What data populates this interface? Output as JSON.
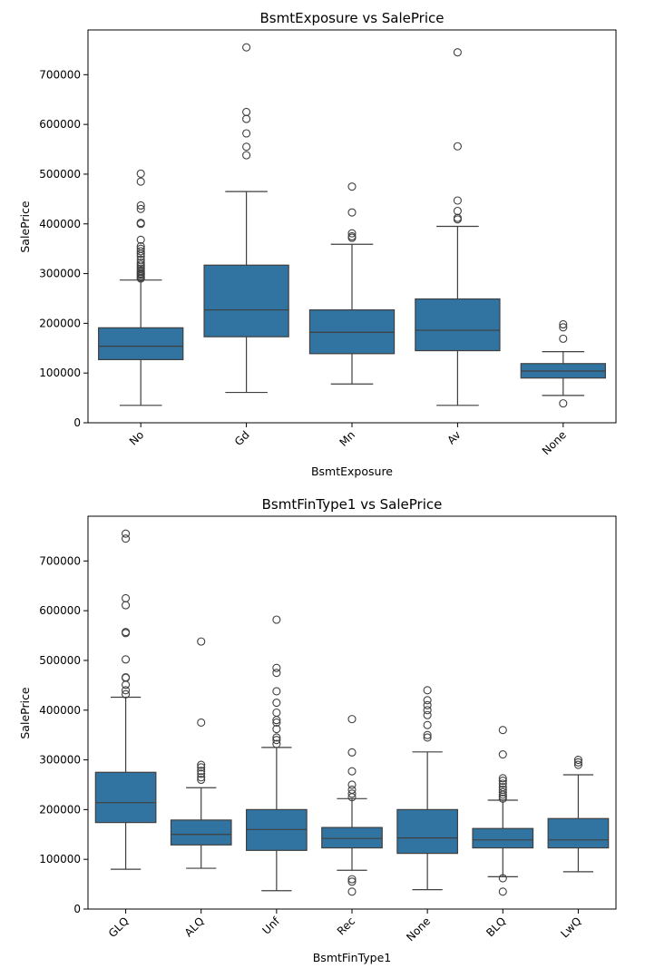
{
  "chart_data": [
    {
      "type": "box",
      "title": "BsmtExposure vs SalePrice",
      "xlabel": "BsmtExposure",
      "ylabel": "SalePrice",
      "ylim": [
        0,
        790000
      ],
      "yticks": [
        0,
        100000,
        200000,
        300000,
        400000,
        500000,
        600000,
        700000
      ],
      "ytick_labels": [
        "0",
        "100000",
        "200000",
        "300000",
        "400000",
        "500000",
        "600000",
        "700000"
      ],
      "color": "#3274a1",
      "categories": [
        "No",
        "Gd",
        "Mn",
        "Av",
        "None"
      ],
      "boxes": [
        {
          "min": 35000,
          "q1": 127000,
          "median": 154000,
          "q3": 191000,
          "max": 287000,
          "outliers": [
            290000,
            292000,
            295000,
            298000,
            300000,
            303000,
            306000,
            310000,
            314000,
            318000,
            322000,
            328000,
            335000,
            340000,
            345000,
            350000,
            355000,
            368000,
            400000,
            402000,
            430000,
            437000,
            485000,
            501000
          ]
        },
        {
          "min": 61000,
          "q1": 173000,
          "median": 227000,
          "q3": 317000,
          "max": 465000,
          "outliers": [
            538000,
            555000,
            582000,
            611000,
            625000,
            755000
          ]
        },
        {
          "min": 78000,
          "q1": 139000,
          "median": 182000,
          "q3": 227000,
          "max": 359000,
          "outliers": [
            372000,
            375000,
            381000,
            423000,
            475000
          ]
        },
        {
          "min": 35000,
          "q1": 145000,
          "median": 186000,
          "q3": 249000,
          "max": 395000,
          "outliers": [
            409000,
            412000,
            426000,
            447000,
            556000,
            745000
          ]
        },
        {
          "min": 55000,
          "q1": 90000,
          "median": 104000,
          "q3": 119000,
          "max": 143000,
          "outliers": [
            39000,
            169000,
            192000,
            198000
          ]
        }
      ]
    },
    {
      "type": "box",
      "title": "BsmtFinType1 vs SalePrice",
      "xlabel": "BsmtFinType1",
      "ylabel": "SalePrice",
      "ylim": [
        0,
        790000
      ],
      "yticks": [
        0,
        100000,
        200000,
        300000,
        400000,
        500000,
        600000,
        700000
      ],
      "ytick_labels": [
        "0",
        "100000",
        "200000",
        "300000",
        "400000",
        "500000",
        "600000",
        "700000"
      ],
      "color": "#3274a1",
      "categories": [
        "GLQ",
        "ALQ",
        "Unf",
        "Rec",
        "None",
        "BLQ",
        "LwQ"
      ],
      "boxes": [
        {
          "min": 80000,
          "q1": 174000,
          "median": 214000,
          "q3": 275000,
          "max": 426000,
          "outliers": [
            432000,
            440000,
            451000,
            465000,
            466000,
            502000,
            555000,
            557000,
            611000,
            625000,
            745000,
            755000
          ]
        },
        {
          "min": 82000,
          "q1": 129000,
          "median": 150000,
          "q3": 179000,
          "max": 244000,
          "outliers": [
            260000,
            265000,
            272000,
            278000,
            285000,
            290000,
            375000,
            538000
          ]
        },
        {
          "min": 37000,
          "q1": 118000,
          "median": 160000,
          "q3": 200000,
          "max": 325000,
          "outliers": [
            332000,
            340000,
            345000,
            362000,
            375000,
            380000,
            395000,
            415000,
            438000,
            475000,
            485000,
            582000
          ]
        },
        {
          "min": 78000,
          "q1": 123000,
          "median": 142000,
          "q3": 164000,
          "max": 222000,
          "outliers": [
            35000,
            55000,
            60000,
            225000,
            232000,
            240000,
            250000,
            277000,
            315000,
            382000
          ]
        },
        {
          "min": 39000,
          "q1": 112000,
          "median": 143000,
          "q3": 200000,
          "max": 316000,
          "outliers": [
            345000,
            350000,
            370000,
            390000,
            400000,
            410000,
            420000,
            440000
          ]
        },
        {
          "min": 65000,
          "q1": 123000,
          "median": 139000,
          "q3": 162000,
          "max": 219000,
          "outliers": [
            35000,
            62000,
            222000,
            226000,
            230000,
            235000,
            240000,
            245000,
            252000,
            258000,
            263000,
            311000,
            360000
          ]
        },
        {
          "min": 75000,
          "q1": 123000,
          "median": 139000,
          "q3": 182000,
          "max": 270000,
          "outliers": [
            290000,
            295000,
            300000
          ]
        }
      ]
    }
  ]
}
